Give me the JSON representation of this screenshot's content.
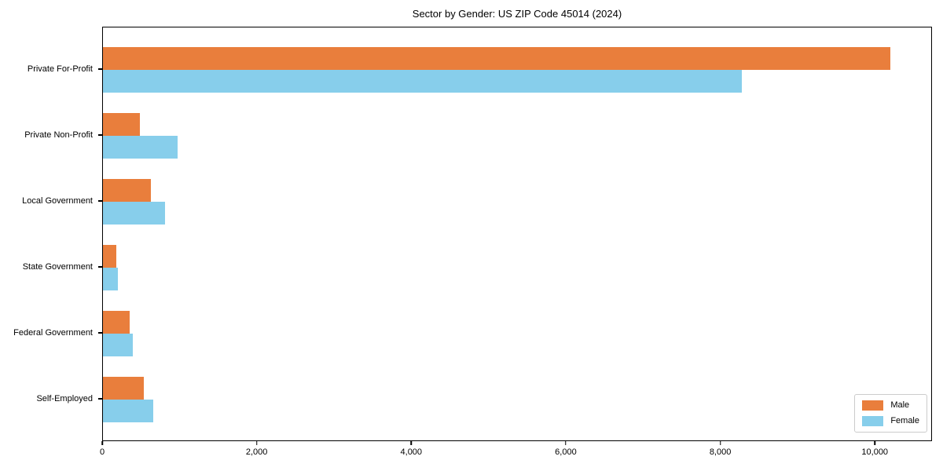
{
  "chart_data": {
    "type": "bar",
    "orientation": "horizontal",
    "title": "Sector by Gender: US ZIP Code 45014 (2024)",
    "categories": [
      "Private For-Profit",
      "Private Non-Profit",
      "Local Government",
      "State Government",
      "Federal Government",
      "Self-Employed"
    ],
    "series": [
      {
        "name": "Male",
        "color": "#e97e3c",
        "values": [
          10210,
          475,
          620,
          170,
          350,
          525
        ]
      },
      {
        "name": "Female",
        "color": "#87ceeb",
        "values": [
          8280,
          965,
          805,
          195,
          390,
          650
        ]
      }
    ],
    "xlabel": "",
    "ylabel": "",
    "xlim": [
      0,
      10740
    ],
    "xticks": [
      {
        "value": 0,
        "label": "0"
      },
      {
        "value": 2000,
        "label": "2,000"
      },
      {
        "value": 4000,
        "label": "4,000"
      },
      {
        "value": 6000,
        "label": "6,000"
      },
      {
        "value": 8000,
        "label": "8,000"
      },
      {
        "value": 10000,
        "label": "10,000"
      }
    ],
    "legend": {
      "position": "lower right",
      "entries": [
        "Male",
        "Female"
      ]
    },
    "grid": false
  }
}
